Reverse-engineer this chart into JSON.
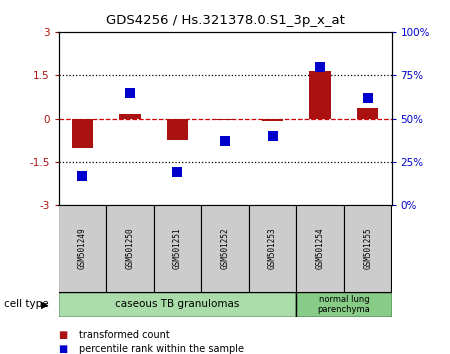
{
  "title": "GDS4256 / Hs.321378.0.S1_3p_x_at",
  "samples": [
    "GSM501249",
    "GSM501250",
    "GSM501251",
    "GSM501252",
    "GSM501253",
    "GSM501254",
    "GSM501255"
  ],
  "transformed_counts": [
    -1.0,
    0.15,
    -0.75,
    -0.05,
    -0.1,
    1.65,
    0.35
  ],
  "percentile_ranks": [
    17,
    65,
    19,
    37,
    40,
    80,
    62
  ],
  "bar_color": "#aa1111",
  "dot_color": "#0000cc",
  "ylim_left": [
    -3,
    3
  ],
  "ylim_right": [
    0,
    100
  ],
  "yticks_left": [
    -3,
    -1.5,
    0,
    1.5,
    3
  ],
  "yticks_right": [
    0,
    25,
    50,
    75,
    100
  ],
  "ytick_labels_left": [
    "-3",
    "-1.5",
    "0",
    "1.5",
    "3"
  ],
  "ytick_labels_right": [
    "0%",
    "25%",
    "50%",
    "75%",
    "100%"
  ],
  "hline_dotted": [
    -1.5,
    1.5
  ],
  "zero_line_y": 0,
  "cell_groups": [
    {
      "label": "caseous TB granulomas",
      "n_samples": 5,
      "color": "#aaddaa"
    },
    {
      "label": "normal lung\nparenchyma",
      "n_samples": 2,
      "color": "#88cc88"
    }
  ],
  "cell_type_label": "cell type",
  "legend_items": [
    {
      "color": "#aa1111",
      "label": "transformed count"
    },
    {
      "color": "#0000cc",
      "label": "percentile rank within the sample"
    }
  ],
  "bar_color_label_box": "#cc2222",
  "dot_color_label_box": "#2222cc",
  "zero_line_color": "#cc0000",
  "dotted_line_color": "#000000",
  "sample_box_color": "#cccccc",
  "bar_width": 0.45,
  "dot_size": 45,
  "dot_marker": "s"
}
